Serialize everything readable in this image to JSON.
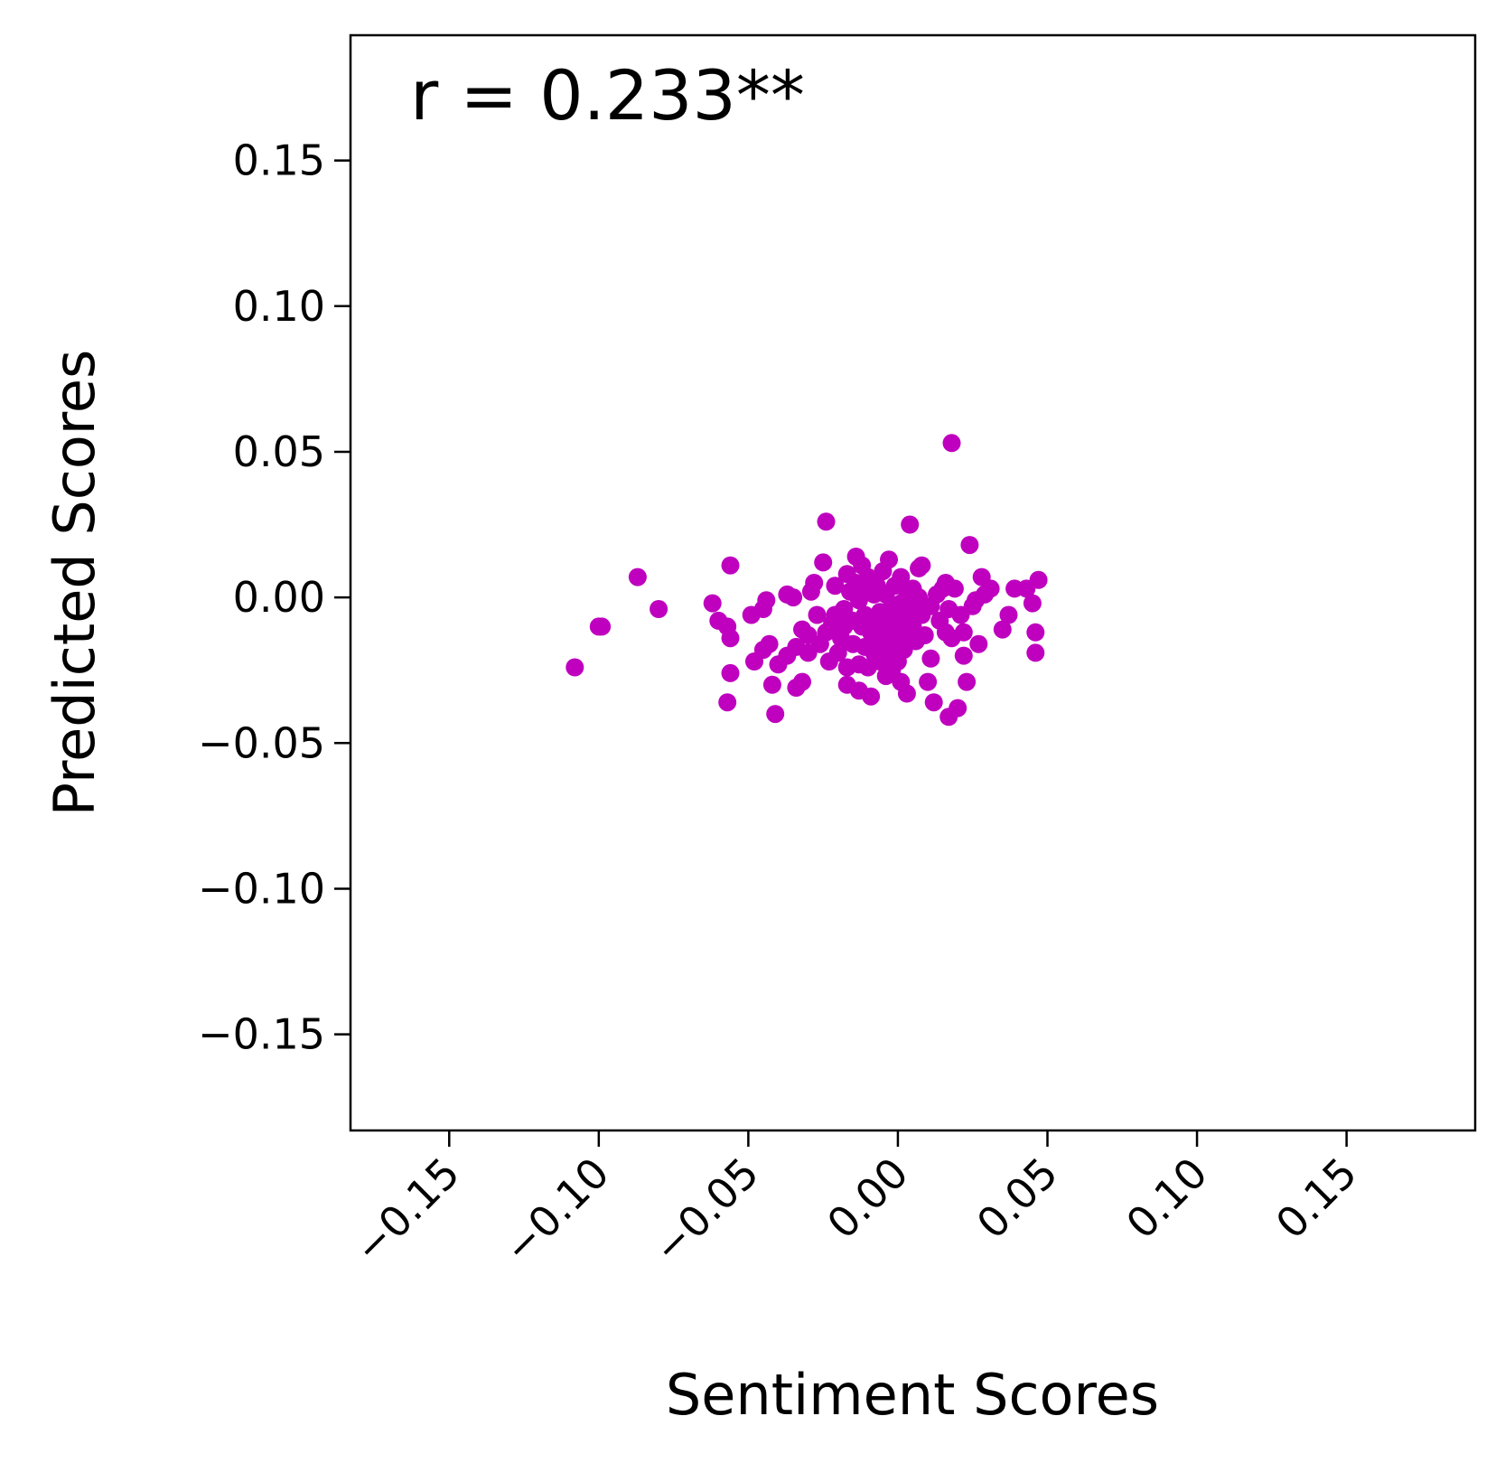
{
  "chart_data": {
    "type": "scatter",
    "annotation": "r = 0.233**",
    "xlabel": "Sentiment Scores",
    "ylabel": "Predicted Scores",
    "xlim": [
      -0.183,
      0.193
    ],
    "ylim": [
      -0.183,
      0.193
    ],
    "xticks": [
      -0.15,
      -0.1,
      -0.05,
      0.0,
      0.05,
      0.1,
      0.15
    ],
    "yticks": [
      -0.15,
      -0.1,
      -0.05,
      0.0,
      0.05,
      0.1,
      0.15
    ],
    "xtick_labels": [
      "−0.15",
      "−0.10",
      "−0.05",
      "0.00",
      "0.05",
      "0.10",
      "0.15"
    ],
    "ytick_labels": [
      "−0.15",
      "−0.10",
      "−0.05",
      "0.00",
      "0.05",
      "0.10",
      "0.15"
    ],
    "grid": false,
    "marker_color": "#bf00bf",
    "points": [
      [
        -0.108,
        -0.024
      ],
      [
        -0.1,
        -0.01
      ],
      [
        -0.099,
        -0.01
      ],
      [
        -0.087,
        0.007
      ],
      [
        -0.08,
        -0.004
      ],
      [
        -0.062,
        -0.002
      ],
      [
        -0.06,
        -0.008
      ],
      [
        -0.057,
        -0.01
      ],
      [
        -0.056,
        0.011
      ],
      [
        -0.056,
        -0.014
      ],
      [
        -0.056,
        -0.026
      ],
      [
        -0.057,
        -0.036
      ],
      [
        -0.049,
        -0.006
      ],
      [
        -0.045,
        -0.004
      ],
      [
        -0.044,
        -0.001
      ],
      [
        -0.043,
        -0.016
      ],
      [
        -0.045,
        -0.018
      ],
      [
        -0.048,
        -0.022
      ],
      [
        -0.042,
        -0.03
      ],
      [
        -0.041,
        -0.04
      ],
      [
        -0.04,
        -0.023
      ],
      [
        -0.037,
        -0.02
      ],
      [
        -0.037,
        0.001
      ],
      [
        -0.035,
        0.0
      ],
      [
        -0.034,
        -0.017
      ],
      [
        -0.034,
        -0.031
      ],
      [
        -0.032,
        -0.029
      ],
      [
        -0.032,
        -0.011
      ],
      [
        -0.03,
        -0.013
      ],
      [
        -0.03,
        -0.019
      ],
      [
        -0.029,
        0.002
      ],
      [
        -0.028,
        0.005
      ],
      [
        -0.027,
        -0.006
      ],
      [
        -0.026,
        -0.016
      ],
      [
        -0.025,
        0.012
      ],
      [
        -0.024,
        0.026
      ],
      [
        -0.024,
        -0.012
      ],
      [
        -0.023,
        -0.022
      ],
      [
        -0.022,
        -0.009
      ],
      [
        -0.021,
        0.004
      ],
      [
        -0.021,
        -0.006
      ],
      [
        -0.02,
        -0.019
      ],
      [
        -0.019,
        -0.014
      ],
      [
        -0.018,
        -0.004
      ],
      [
        -0.018,
        -0.01
      ],
      [
        -0.017,
        0.008
      ],
      [
        -0.017,
        -0.024
      ],
      [
        -0.017,
        -0.03
      ],
      [
        -0.016,
        0.002
      ],
      [
        -0.015,
        -0.008
      ],
      [
        -0.015,
        -0.016
      ],
      [
        -0.014,
        0.005
      ],
      [
        -0.014,
        0.014
      ],
      [
        -0.013,
        -0.001
      ],
      [
        -0.013,
        -0.023
      ],
      [
        -0.013,
        -0.032
      ],
      [
        -0.012,
        -0.01
      ],
      [
        -0.012,
        0.011
      ],
      [
        -0.011,
        -0.006
      ],
      [
        -0.011,
        -0.017
      ],
      [
        -0.01,
        0.007
      ],
      [
        -0.01,
        0.003
      ],
      [
        -0.01,
        -0.024
      ],
      [
        -0.009,
        -0.012
      ],
      [
        -0.009,
        -0.034
      ],
      [
        -0.008,
        0.001
      ],
      [
        -0.008,
        -0.008
      ],
      [
        -0.008,
        -0.019
      ],
      [
        -0.007,
        0.004
      ],
      [
        -0.007,
        -0.014
      ],
      [
        -0.006,
        -0.005
      ],
      [
        -0.006,
        -0.022
      ],
      [
        -0.005,
        0.009
      ],
      [
        -0.005,
        -0.01
      ],
      [
        -0.005,
        -0.016
      ],
      [
        -0.004,
        0.001
      ],
      [
        -0.004,
        -0.006
      ],
      [
        -0.004,
        -0.027
      ],
      [
        -0.003,
        0.013
      ],
      [
        -0.003,
        -0.012
      ],
      [
        -0.003,
        -0.02
      ],
      [
        -0.002,
        -0.003
      ],
      [
        -0.002,
        -0.009
      ],
      [
        -0.002,
        -0.025
      ],
      [
        -0.001,
        0.004
      ],
      [
        -0.001,
        -0.015
      ],
      [
        -0.001,
        -0.018
      ],
      [
        0.0,
        -0.006
      ],
      [
        0.0,
        -0.011
      ],
      [
        0.0,
        -0.022
      ],
      [
        0.001,
        0.007
      ],
      [
        0.001,
        -0.002
      ],
      [
        0.001,
        -0.029
      ],
      [
        0.002,
        -0.013
      ],
      [
        0.002,
        -0.018
      ],
      [
        0.003,
        0.002
      ],
      [
        0.003,
        -0.008
      ],
      [
        0.003,
        -0.033
      ],
      [
        0.004,
        0.025
      ],
      [
        0.004,
        -0.004
      ],
      [
        0.005,
        0.003
      ],
      [
        0.005,
        -0.01
      ],
      [
        0.006,
        -0.015
      ],
      [
        0.007,
        0.0
      ],
      [
        0.007,
        0.01
      ],
      [
        0.008,
        0.011
      ],
      [
        0.008,
        -0.006
      ],
      [
        0.009,
        -0.013
      ],
      [
        0.01,
        -0.029
      ],
      [
        0.011,
        -0.021
      ],
      [
        0.011,
        -0.003
      ],
      [
        0.012,
        -0.036
      ],
      [
        0.013,
        0.001
      ],
      [
        0.014,
        -0.008
      ],
      [
        0.015,
        0.003
      ],
      [
        0.016,
        -0.012
      ],
      [
        0.016,
        0.005
      ],
      [
        0.017,
        -0.004
      ],
      [
        0.017,
        -0.041
      ],
      [
        0.018,
        0.053
      ],
      [
        0.018,
        -0.014
      ],
      [
        0.019,
        0.003
      ],
      [
        0.02,
        -0.038
      ],
      [
        0.021,
        -0.006
      ],
      [
        0.022,
        -0.02
      ],
      [
        0.022,
        -0.012
      ],
      [
        0.023,
        -0.029
      ],
      [
        0.024,
        0.018
      ],
      [
        0.025,
        -0.003
      ],
      [
        0.026,
        -0.001
      ],
      [
        0.027,
        -0.016
      ],
      [
        0.028,
        0.007
      ],
      [
        0.029,
        0.001
      ],
      [
        0.031,
        0.003
      ],
      [
        0.035,
        -0.011
      ],
      [
        0.037,
        -0.006
      ],
      [
        0.039,
        0.003
      ],
      [
        0.043,
        0.003
      ],
      [
        0.045,
        -0.002
      ],
      [
        0.046,
        -0.012
      ],
      [
        0.046,
        -0.019
      ],
      [
        0.047,
        0.006
      ]
    ]
  }
}
